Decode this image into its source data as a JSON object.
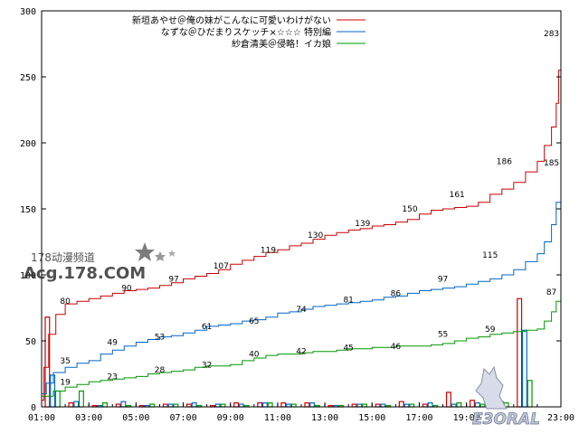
{
  "chart_data": {
    "type": "line",
    "title": "",
    "xlabel": "",
    "ylabel": "",
    "ylim": [
      0,
      300
    ],
    "y_ticks": [
      "0",
      "50",
      "100",
      "150",
      "200",
      "250",
      "300"
    ],
    "x_range": [
      1,
      23
    ],
    "x_ticks": [
      {
        "hour": 1,
        "label": "01:00"
      },
      {
        "hour": 3,
        "label": "03:00"
      },
      {
        "hour": 5,
        "label": "05:00"
      },
      {
        "hour": 7,
        "label": "07:00"
      },
      {
        "hour": 9,
        "label": "09:00"
      },
      {
        "hour": 11,
        "label": "11:00"
      },
      {
        "hour": 13,
        "label": "13:00"
      },
      {
        "hour": 15,
        "label": "15:00"
      },
      {
        "hour": 17,
        "label": "17:00"
      },
      {
        "hour": 19,
        "label": "19:00"
      },
      {
        "hour": 23,
        "label": "23:00"
      }
    ],
    "grid": false,
    "legend_position": "top-right",
    "series": [
      {
        "name": "新垣あやせ＠俺の妹がこんなに可愛いわけがない",
        "color": "#cc0000",
        "cumulative": {
          "x": [
            1.0,
            1.1,
            1.3,
            1.6,
            2.0,
            2.5,
            3.0,
            3.5,
            4.0,
            4.5,
            5.0,
            5.5,
            6.0,
            6.5,
            7.0,
            7.5,
            8.0,
            8.5,
            9.0,
            9.5,
            10.0,
            10.5,
            11.0,
            11.5,
            12.0,
            12.5,
            13.0,
            13.5,
            14.0,
            14.5,
            15.0,
            15.5,
            16.0,
            16.5,
            17.0,
            17.5,
            18.0,
            18.5,
            19.0,
            19.5,
            20.0,
            20.5,
            21.0,
            21.5,
            22.0,
            22.3,
            22.6,
            22.8,
            22.9,
            23.0
          ],
          "y": [
            5,
            30,
            55,
            70,
            78,
            80,
            82,
            84,
            86,
            88,
            89,
            90,
            92,
            94,
            97,
            99,
            101,
            104,
            108,
            111,
            114,
            117,
            119,
            122,
            124,
            127,
            130,
            132,
            134,
            135,
            137,
            138,
            140,
            142,
            146,
            149,
            150,
            151,
            152,
            155,
            161,
            165,
            170,
            178,
            186,
            198,
            212,
            230,
            255,
            283
          ]
        },
        "hourly": [
          68,
          3,
          1,
          2,
          1,
          2,
          2,
          1,
          3,
          3,
          3,
          3,
          1,
          2,
          2,
          4,
          2,
          11,
          5,
          8,
          82
        ],
        "labels": [
          {
            "x": 2.0,
            "y": 80,
            "text": "80"
          },
          {
            "x": 4.6,
            "y": 90,
            "text": "90"
          },
          {
            "x": 6.6,
            "y": 97,
            "text": "97"
          },
          {
            "x": 8.6,
            "y": 107,
            "text": "107"
          },
          {
            "x": 10.6,
            "y": 119,
            "text": "119"
          },
          {
            "x": 12.6,
            "y": 130,
            "text": "130"
          },
          {
            "x": 14.6,
            "y": 139,
            "text": "139"
          },
          {
            "x": 16.6,
            "y": 150,
            "text": "150"
          },
          {
            "x": 18.6,
            "y": 161,
            "text": "161"
          },
          {
            "x": 20.6,
            "y": 186,
            "text": "186"
          },
          {
            "x": 22.6,
            "y": 283,
            "text": "283"
          }
        ]
      },
      {
        "name": "なずな＠ひだまりスケッチ×☆☆☆ 特別編",
        "color": "#0066cc",
        "cumulative": {
          "x": [
            1.0,
            1.2,
            1.5,
            2.0,
            2.5,
            3.0,
            3.5,
            4.0,
            4.5,
            5.0,
            5.5,
            6.0,
            6.5,
            7.0,
            7.5,
            8.0,
            8.5,
            9.0,
            9.5,
            10.0,
            10.5,
            11.0,
            11.5,
            12.0,
            12.5,
            13.0,
            13.5,
            14.0,
            14.5,
            15.0,
            15.5,
            16.0,
            16.5,
            17.0,
            17.5,
            18.0,
            18.5,
            19.0,
            19.5,
            20.0,
            20.5,
            21.0,
            21.5,
            22.0,
            22.3,
            22.6,
            22.8,
            23.0
          ],
          "y": [
            10,
            18,
            26,
            30,
            33,
            35,
            40,
            43,
            46,
            49,
            51,
            53,
            54,
            56,
            58,
            61,
            62,
            63,
            65,
            66,
            68,
            71,
            72,
            74,
            76,
            77,
            78,
            79,
            80,
            81,
            83,
            84,
            86,
            88,
            89,
            90,
            91,
            93,
            95,
            97,
            100,
            104,
            110,
            116,
            125,
            138,
            155,
            185
          ]
        },
        "hourly": [
          24,
          4,
          1,
          4,
          1,
          2,
          3,
          2,
          2,
          3,
          2,
          3,
          1,
          2,
          2,
          2,
          3,
          2,
          3,
          4,
          58
        ],
        "labels": [
          {
            "x": 2.0,
            "y": 35,
            "text": "35"
          },
          {
            "x": 4.0,
            "y": 49,
            "text": "49"
          },
          {
            "x": 6.0,
            "y": 53,
            "text": "53"
          },
          {
            "x": 8.0,
            "y": 61,
            "text": "61"
          },
          {
            "x": 10.0,
            "y": 65,
            "text": "65"
          },
          {
            "x": 12.0,
            "y": 74,
            "text": "74"
          },
          {
            "x": 14.0,
            "y": 81,
            "text": "81"
          },
          {
            "x": 16.0,
            "y": 86,
            "text": "86"
          },
          {
            "x": 18.0,
            "y": 97,
            "text": "97"
          },
          {
            "x": 20.0,
            "y": 115,
            "text": "115"
          },
          {
            "x": 22.6,
            "y": 185,
            "text": "185"
          }
        ]
      },
      {
        "name": "紗倉清美＠侵略！イカ娘",
        "color": "#009900",
        "cumulative": {
          "x": [
            1.0,
            1.5,
            2.0,
            2.5,
            3.0,
            3.5,
            4.0,
            4.5,
            5.0,
            5.5,
            6.0,
            6.5,
            7.0,
            7.5,
            8.0,
            8.5,
            9.0,
            9.5,
            10.0,
            10.5,
            11.0,
            11.5,
            12.0,
            12.5,
            13.0,
            13.5,
            14.0,
            14.5,
            15.0,
            15.5,
            16.0,
            16.5,
            17.0,
            17.5,
            18.0,
            18.5,
            19.0,
            19.5,
            20.0,
            20.5,
            21.0,
            21.5,
            22.0,
            22.3,
            22.6,
            22.8,
            23.0
          ],
          "y": [
            8,
            12,
            15,
            17,
            19,
            20,
            21,
            22,
            23,
            25,
            26,
            27,
            28,
            30,
            31,
            31,
            32,
            35,
            37,
            39,
            40,
            40,
            41,
            42,
            42,
            43,
            44,
            44,
            45,
            45,
            46,
            46,
            46,
            47,
            48,
            50,
            52,
            53,
            55,
            56,
            57,
            58,
            59,
            65,
            72,
            80,
            87
          ]
        },
        "hourly": [
          12,
          12,
          3,
          1,
          2,
          2,
          1,
          2,
          1,
          3,
          2,
          1,
          1,
          2,
          1,
          2,
          1,
          3,
          2,
          3,
          20
        ],
        "labels": [
          {
            "x": 2.0,
            "y": 19,
            "text": "19"
          },
          {
            "x": 4.0,
            "y": 23,
            "text": "23"
          },
          {
            "x": 6.0,
            "y": 28,
            "text": "28"
          },
          {
            "x": 8.0,
            "y": 32,
            "text": "32"
          },
          {
            "x": 10.0,
            "y": 40,
            "text": "40"
          },
          {
            "x": 12.0,
            "y": 42,
            "text": "42"
          },
          {
            "x": 14.0,
            "y": 45,
            "text": "45"
          },
          {
            "x": 16.0,
            "y": 46,
            "text": "46"
          },
          {
            "x": 18.0,
            "y": 55,
            "text": "55"
          },
          {
            "x": 20.0,
            "y": 59,
            "text": "59"
          },
          {
            "x": 22.6,
            "y": 87,
            "text": "87"
          }
        ]
      }
    ]
  },
  "watermarks": {
    "site_name": "178动漫频道",
    "site_url": "Acg.178.COM",
    "corner_logo": "E3ORAL"
  }
}
